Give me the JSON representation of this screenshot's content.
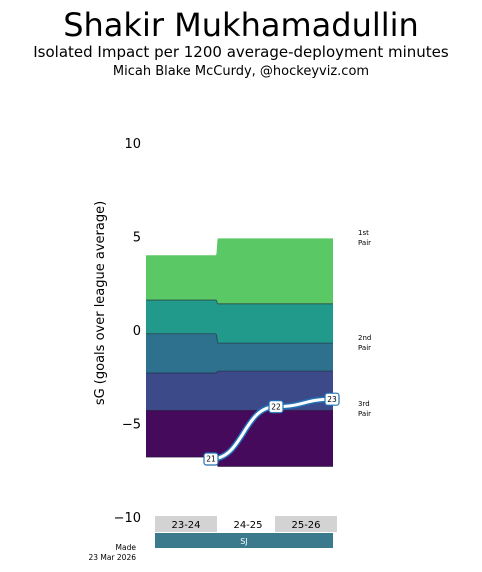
{
  "header": {
    "title": "Shakir Mukhamadullin",
    "subtitle": "Isolated Impact per 1200 average-deployment minutes",
    "credit": "Micah Blake McCurdy, @hockeyviz.com"
  },
  "footer": {
    "made_line1": "Made",
    "made_line2": "23 Mar 2026"
  },
  "colors": {
    "band_colors": [
      "#5ac864",
      "#21998b",
      "#2e718e",
      "#3c4a8a",
      "#460a5d"
    ],
    "season_shade": "#d3d3d3",
    "team_bar": "#3b7a8c",
    "marker_stroke": "#2171b5"
  },
  "chart_data": {
    "type": "area",
    "ylabel": "sG (goals over league average)",
    "ylim": [
      -10,
      10
    ],
    "yticks": [
      -10,
      -5,
      0,
      5,
      10
    ],
    "x": [
      23,
      24,
      25
    ],
    "seasons": [
      "23-24",
      "24-25",
      "25-26"
    ],
    "team": "SJ",
    "pair_labels": [
      "1st\nPair",
      "2nd\nPair",
      "3rd\nPair"
    ],
    "band_boundaries": [
      [
        4.0,
        4.9,
        4.9
      ],
      [
        1.6,
        1.4,
        1.4
      ],
      [
        -0.2,
        -0.7,
        -0.7
      ],
      [
        -2.3,
        -2.2,
        -2.2
      ],
      [
        -4.3,
        -4.3,
        -4.3
      ],
      [
        -6.8,
        -7.3,
        -7.3
      ]
    ],
    "series": [
      {
        "name": "",
        "x": [
          23,
          24,
          25
        ],
        "values": [
          -6.9,
          -4.1,
          -3.7
        ],
        "labels": [
          "21",
          "22",
          "23"
        ]
      }
    ]
  }
}
